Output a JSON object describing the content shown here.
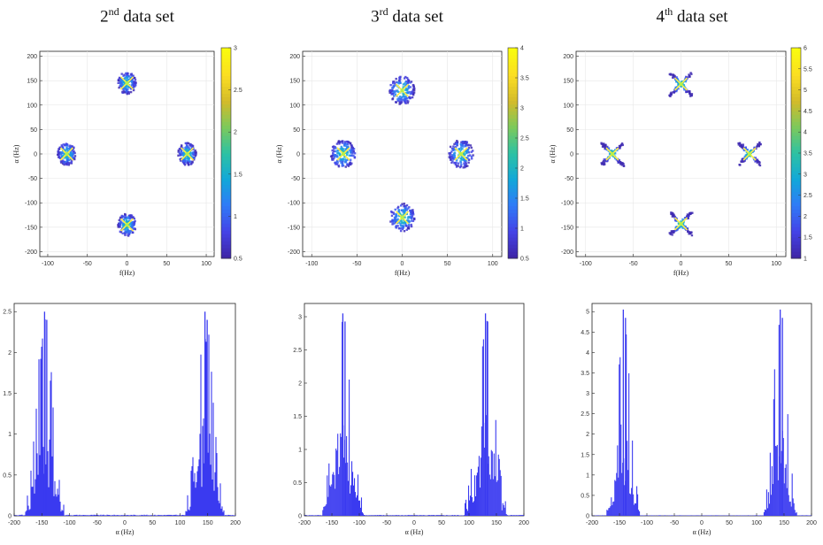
{
  "figure": {
    "titles": [
      {
        "ord": "2",
        "sup": "nd",
        "rest": " data set"
      },
      {
        "ord": "3",
        "sup": "rd",
        "rest": " data set"
      },
      {
        "ord": "4",
        "sup": "th",
        "rest": " data set"
      }
    ]
  },
  "colors": {
    "colormap": [
      "#3e26a8",
      "#4443e8",
      "#2f7cf7",
      "#12a8d8",
      "#2dc2a3",
      "#7cc95c",
      "#d3bb2a",
      "#fbdd23",
      "#f9fb0e"
    ],
    "bar": "#3a3af0",
    "spot_core": "#ffee44"
  },
  "chart_data": [
    {
      "type": "heatmap",
      "title": "2nd data set",
      "xlabel": "f(Hz)",
      "ylabel": "α (Hz)",
      "xlim": [
        -110,
        110
      ],
      "ylim": [
        -210,
        210
      ],
      "xticks": [
        -100,
        -50,
        0,
        50,
        100
      ],
      "yticks": [
        -200,
        -150,
        -100,
        -50,
        0,
        50,
        100,
        150,
        200
      ],
      "clim": [
        0.5,
        3
      ],
      "colorbar_ticks": [
        0.5,
        1,
        1.5,
        2,
        2.5,
        3
      ],
      "blobs": [
        {
          "f": 0,
          "alpha": 145,
          "peak": 3,
          "shape": "round",
          "spread_f": 10,
          "spread_alpha": 20
        },
        {
          "f": -76,
          "alpha": 0,
          "peak": 3,
          "shape": "round",
          "spread_f": 10,
          "spread_alpha": 20
        },
        {
          "f": 76,
          "alpha": 0,
          "peak": 3,
          "shape": "round",
          "spread_f": 10,
          "spread_alpha": 20
        },
        {
          "f": 0,
          "alpha": -145,
          "peak": 3,
          "shape": "round",
          "spread_f": 10,
          "spread_alpha": 20
        }
      ]
    },
    {
      "type": "heatmap",
      "title": "3rd data set",
      "xlabel": "f(Hz)",
      "ylabel": "α (Hz)",
      "xlim": [
        -110,
        110
      ],
      "ylim": [
        -210,
        210
      ],
      "xticks": [
        -100,
        -50,
        0,
        50,
        100
      ],
      "yticks": [
        -200,
        -150,
        -100,
        -50,
        0,
        50,
        100,
        150,
        200
      ],
      "clim": [
        0.5,
        4
      ],
      "colorbar_ticks": [
        0.5,
        1,
        1.5,
        2,
        2.5,
        3,
        3.5,
        4
      ],
      "blobs": [
        {
          "f": 0,
          "alpha": 130,
          "peak": 4,
          "shape": "round",
          "spread_f": 12,
          "spread_alpha": 25
        },
        {
          "f": -65,
          "alpha": 0,
          "peak": 4,
          "shape": "round",
          "spread_f": 12,
          "spread_alpha": 25
        },
        {
          "f": 65,
          "alpha": 0,
          "peak": 4,
          "shape": "round",
          "spread_f": 12,
          "spread_alpha": 25
        },
        {
          "f": 0,
          "alpha": -130,
          "peak": 4,
          "shape": "round",
          "spread_f": 12,
          "spread_alpha": 25
        }
      ]
    },
    {
      "type": "heatmap",
      "title": "4th data set",
      "xlabel": "f(Hz)",
      "ylabel": "α (Hz)",
      "xlim": [
        -110,
        110
      ],
      "ylim": [
        -210,
        210
      ],
      "xticks": [
        -100,
        -50,
        0,
        50,
        100
      ],
      "yticks": [
        -200,
        -150,
        -100,
        -50,
        0,
        50,
        100,
        150,
        200
      ],
      "clim": [
        1,
        6
      ],
      "colorbar_ticks": [
        1,
        1.5,
        2,
        2.5,
        3,
        3.5,
        4,
        4.5,
        5,
        5.5,
        6
      ],
      "blobs": [
        {
          "f": 0,
          "alpha": 143,
          "peak": 6,
          "shape": "cross",
          "spread_f": 9,
          "spread_alpha": 18
        },
        {
          "f": -72,
          "alpha": 0,
          "peak": 6,
          "shape": "cross",
          "spread_f": 9,
          "spread_alpha": 18
        },
        {
          "f": 72,
          "alpha": 0,
          "peak": 6,
          "shape": "cross",
          "spread_f": 9,
          "spread_alpha": 18
        },
        {
          "f": 0,
          "alpha": -143,
          "peak": 6,
          "shape": "cross",
          "spread_f": 9,
          "spread_alpha": 18
        }
      ]
    },
    {
      "type": "bar",
      "title": "",
      "xlabel": "α (Hz)",
      "ylabel": "",
      "xlim": [
        -200,
        200
      ],
      "ylim": [
        0,
        2.6
      ],
      "xticks": [
        -200,
        -150,
        -100,
        -50,
        0,
        50,
        100,
        150,
        200
      ],
      "yticks": [
        0,
        0.5,
        1,
        1.5,
        2,
        2.5
      ],
      "ytick_labels": [
        "0",
        "0.5",
        "1",
        "1.5",
        "2",
        "2.5"
      ],
      "peak_centers": [
        -145,
        145
      ],
      "peak_value": 2.5,
      "peak_halfwidth": 35
    },
    {
      "type": "bar",
      "title": "",
      "xlabel": "α (Hz)",
      "ylabel": "",
      "xlim": [
        -200,
        200
      ],
      "ylim": [
        0,
        3.2
      ],
      "xticks": [
        -200,
        -150,
        -100,
        -50,
        0,
        50,
        100,
        150,
        200
      ],
      "yticks": [
        0,
        0.5,
        1,
        1.5,
        2,
        2.5,
        3
      ],
      "ytick_labels": [
        "0",
        "0.5",
        "1",
        "1.5",
        "2",
        "2.5",
        "3"
      ],
      "peak_centers": [
        -130,
        130
      ],
      "peak_value": 3.05,
      "peak_halfwidth": 38
    },
    {
      "type": "bar",
      "title": "",
      "xlabel": "α (Hz)",
      "ylabel": "",
      "xlim": [
        -200,
        200
      ],
      "ylim": [
        0,
        5.2
      ],
      "xticks": [
        -200,
        -150,
        -100,
        -50,
        0,
        50,
        100,
        150,
        200
      ],
      "yticks": [
        0,
        0.5,
        1,
        1.5,
        2,
        2.5,
        3,
        3.5,
        4,
        4.5,
        5
      ],
      "ytick_labels": [
        "0",
        "0.5",
        "1",
        "1.5",
        "2",
        "2.5",
        "3",
        "3.5",
        "4",
        "4.5",
        "5"
      ],
      "peak_centers": [
        -143,
        143
      ],
      "peak_value": 5.05,
      "peak_halfwidth": 30
    }
  ]
}
